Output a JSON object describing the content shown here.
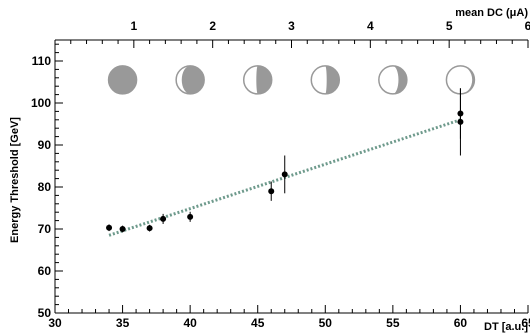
{
  "chart_data": {
    "type": "scatter",
    "xlabel": "DT [a.u.]",
    "ylabel": "Energy Threshold [GeV]",
    "top_axis_label": "mean DC (μA)",
    "xlim": [
      30,
      65
    ],
    "ylim": [
      50,
      115
    ],
    "x_ticks": [
      30,
      35,
      40,
      45,
      50,
      55,
      60,
      65
    ],
    "x_tick_labels": [
      "30",
      "35",
      "40",
      "45",
      "50",
      "55",
      "60",
      "65"
    ],
    "y_ticks": [
      50,
      60,
      70,
      80,
      90,
      100,
      110
    ],
    "y_tick_labels": [
      "50",
      "60",
      "70",
      "80",
      "90",
      "100",
      "110"
    ],
    "top_axis_xlim": [
      0,
      6
    ],
    "top_ticks": [
      1,
      2,
      3,
      4,
      5,
      6
    ],
    "top_tick_labels": [
      "1",
      "2",
      "3",
      "4",
      "5",
      "6"
    ],
    "points": [
      {
        "x": 34.0,
        "y": 70.3,
        "err": 0.8
      },
      {
        "x": 35.0,
        "y": 70.0,
        "err": 0.8
      },
      {
        "x": 37.0,
        "y": 70.2,
        "err": 0.8
      },
      {
        "x": 38.0,
        "y": 72.4,
        "err": 1.2
      },
      {
        "x": 40.0,
        "y": 72.9,
        "err": 1.2
      },
      {
        "x": 46.0,
        "y": 79.0,
        "err": 2.3
      },
      {
        "x": 47.0,
        "y": 83.0,
        "err": 4.5
      },
      {
        "x": 60.0,
        "y": 95.5,
        "err": 8.0
      },
      {
        "x": 60.0,
        "y": 97.5,
        "err": 6.0
      }
    ],
    "fit_line": {
      "x": [
        34.0,
        60.0
      ],
      "y": [
        68.5,
        96.0
      ],
      "style": "dotted",
      "color": "#6e9a8c"
    },
    "moon_phases": [
      {
        "x": 35.0,
        "lit_fraction": 1.0
      },
      {
        "x": 40.0,
        "lit_fraction": 0.8
      },
      {
        "x": 45.0,
        "lit_fraction": 0.55
      },
      {
        "x": 50.0,
        "lit_fraction": 0.45
      },
      {
        "x": 55.0,
        "lit_fraction": 0.3
      },
      {
        "x": 60.0,
        "lit_fraction": 0.08
      }
    ],
    "grid": false,
    "colors": {
      "points": "#000000",
      "moon": "#999999"
    }
  }
}
